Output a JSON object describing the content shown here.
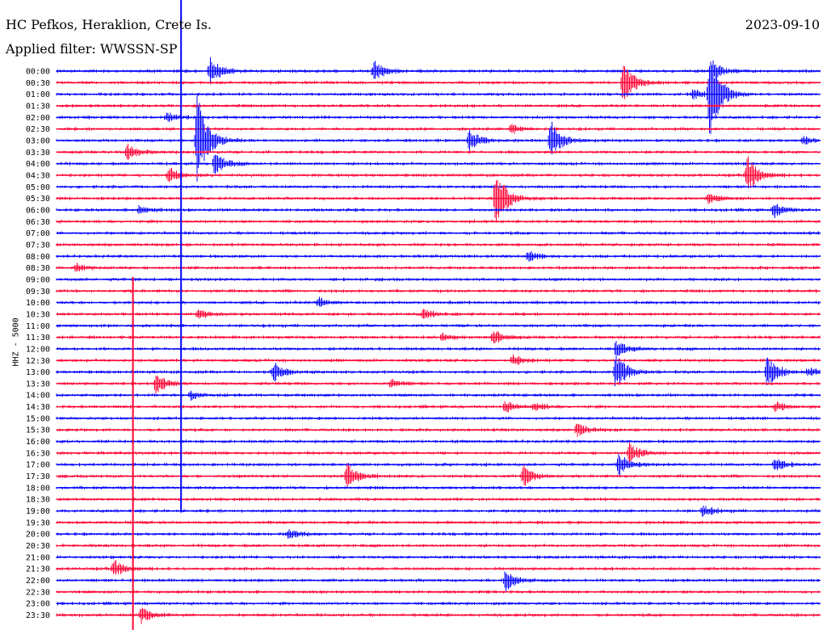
{
  "header": {
    "station": "HC Pefkos, Heraklion, Crete Is.",
    "filter": "Applied filter: WWSSN-SP",
    "date": "2023-09-10"
  },
  "chart_data": {
    "type": "line",
    "title": "HC Pefkos, Heraklion, Crete Is.",
    "subtitle": "Applied filter: WWSSN-SP",
    "date": "2023-09-10",
    "ylabel": "HHZ - 5000",
    "colors": {
      "even": "#0000ff",
      "odd": "#ff0033"
    },
    "row_labels": [
      "00:00",
      "00:30",
      "01:00",
      "01:30",
      "02:00",
      "02:30",
      "03:00",
      "03:30",
      "04:00",
      "04:30",
      "05:00",
      "05:30",
      "06:00",
      "06:30",
      "07:00",
      "07:30",
      "08:00",
      "08:30",
      "09:00",
      "09:30",
      "10:00",
      "10:30",
      "11:00",
      "11:30",
      "12:00",
      "12:30",
      "13:00",
      "13:30",
      "14:00",
      "14:30",
      "15:00",
      "15:30",
      "16:00",
      "16:30",
      "17:00",
      "17:30",
      "18:00",
      "18:30",
      "19:00",
      "19:30",
      "20:00",
      "20:30",
      "21:00",
      "21:30",
      "22:00",
      "22:30",
      "23:00",
      "23:30"
    ],
    "x_range_minutes": [
      0,
      30
    ],
    "events": [
      {
        "row": 0,
        "x": 0.201,
        "amp": 18
      },
      {
        "row": 0,
        "x": 0.415,
        "amp": 14
      },
      {
        "row": 0,
        "x": 0.857,
        "amp": 14
      },
      {
        "row": 1,
        "x": 0.742,
        "amp": 28
      },
      {
        "row": 2,
        "x": 0.855,
        "amp": 60
      },
      {
        "row": 2,
        "x": 0.833,
        "amp": 6
      },
      {
        "row": 4,
        "x": 0.144,
        "amp": 6
      },
      {
        "row": 5,
        "x": 0.595,
        "amp": 6
      },
      {
        "row": 6,
        "x": 0.184,
        "amp": 60
      },
      {
        "row": 6,
        "x": 0.54,
        "amp": 14
      },
      {
        "row": 6,
        "x": 0.647,
        "amp": 24
      },
      {
        "row": 6,
        "x": 0.978,
        "amp": 5
      },
      {
        "row": 7,
        "x": 0.093,
        "amp": 10
      },
      {
        "row": 8,
        "x": 0.207,
        "amp": 14
      },
      {
        "row": 9,
        "x": 0.147,
        "amp": 10
      },
      {
        "row": 9,
        "x": 0.904,
        "amp": 26
      },
      {
        "row": 11,
        "x": 0.575,
        "amp": 40
      },
      {
        "row": 11,
        "x": 0.853,
        "amp": 6
      },
      {
        "row": 12,
        "x": 0.108,
        "amp": 5
      },
      {
        "row": 12,
        "x": 0.939,
        "amp": 9
      },
      {
        "row": 16,
        "x": 0.617,
        "amp": 6
      },
      {
        "row": 17,
        "x": 0.026,
        "amp": 5
      },
      {
        "row": 20,
        "x": 0.342,
        "amp": 6
      },
      {
        "row": 21,
        "x": 0.185,
        "amp": 6
      },
      {
        "row": 21,
        "x": 0.48,
        "amp": 6
      },
      {
        "row": 23,
        "x": 0.572,
        "amp": 10
      },
      {
        "row": 23,
        "x": 0.505,
        "amp": 4
      },
      {
        "row": 24,
        "x": 0.733,
        "amp": 10
      },
      {
        "row": 25,
        "x": 0.597,
        "amp": 7
      },
      {
        "row": 26,
        "x": 0.284,
        "amp": 12
      },
      {
        "row": 26,
        "x": 0.732,
        "amp": 24
      },
      {
        "row": 26,
        "x": 0.93,
        "amp": 22
      },
      {
        "row": 26,
        "x": 0.983,
        "amp": 5
      },
      {
        "row": 27,
        "x": 0.13,
        "amp": 12
      },
      {
        "row": 27,
        "x": 0.438,
        "amp": 5
      },
      {
        "row": 28,
        "x": 0.176,
        "amp": 5
      },
      {
        "row": 29,
        "x": 0.587,
        "amp": 7
      },
      {
        "row": 29,
        "x": 0.626,
        "amp": 5
      },
      {
        "row": 29,
        "x": 0.941,
        "amp": 6
      },
      {
        "row": 31,
        "x": 0.681,
        "amp": 8
      },
      {
        "row": 33,
        "x": 0.75,
        "amp": 12
      },
      {
        "row": 34,
        "x": 0.736,
        "amp": 14
      },
      {
        "row": 34,
        "x": 0.94,
        "amp": 8
      },
      {
        "row": 35,
        "x": 0.38,
        "amp": 18
      },
      {
        "row": 35,
        "x": 0.611,
        "amp": 14
      },
      {
        "row": 38,
        "x": 0.846,
        "amp": 7
      },
      {
        "row": 40,
        "x": 0.304,
        "amp": 6
      },
      {
        "row": 43,
        "x": 0.075,
        "amp": 12
      },
      {
        "row": 44,
        "x": 0.588,
        "amp": 14
      },
      {
        "row": 47,
        "x": 0.111,
        "amp": 10
      }
    ],
    "long_spikes": [
      {
        "row": 8,
        "x": 0.163,
        "up": 203,
        "down": 432
      },
      {
        "row": 21,
        "x": 0.1,
        "up": 46,
        "down": 422
      }
    ]
  }
}
